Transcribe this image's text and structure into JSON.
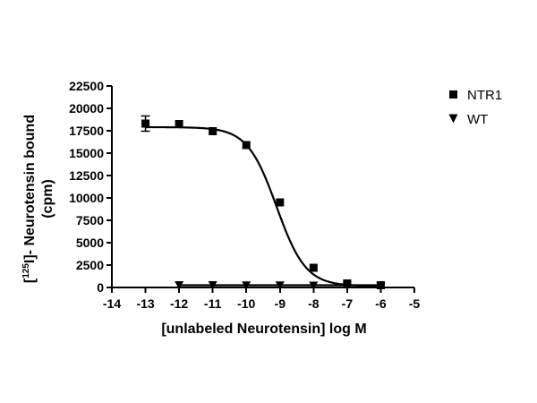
{
  "chart_data": {
    "type": "scatter",
    "title": "",
    "xlabel": "[unlabeled Neurotensin] log M",
    "ylabel_prefix": "[",
    "ylabel_superscript": "125",
    "ylabel_suffix": "I]- Neurotensin bound",
    "ylabel_line2": "(cpm)",
    "xlim": [
      -14,
      -5
    ],
    "ylim": [
      0,
      22500
    ],
    "x_ticks": [
      -14,
      -13,
      -12,
      -11,
      -10,
      -9,
      -8,
      -7,
      -6,
      -5
    ],
    "x_tick_labels": [
      "-14",
      "-13",
      "-12",
      "-11",
      "-10",
      "-9",
      "-8",
      "-7",
      "-6",
      "-5"
    ],
    "y_ticks": [
      0,
      2500,
      5000,
      7500,
      10000,
      12500,
      15000,
      17500,
      20000,
      22500
    ],
    "y_tick_labels": [
      "0",
      "2500",
      "5000",
      "7500",
      "10000",
      "12500",
      "15000",
      "17500",
      "20000",
      "22500"
    ],
    "grid": false,
    "legend": "right",
    "series": [
      {
        "name": "NTR1",
        "marker": "square",
        "x": [
          -13,
          -12,
          -11,
          -10,
          -9,
          -8,
          -7,
          -6
        ],
        "y": [
          18300,
          18250,
          17450,
          15900,
          9500,
          2200,
          450,
          250
        ],
        "error": [
          850,
          0,
          0,
          0,
          0,
          0,
          0,
          0
        ],
        "fit": {
          "model": "one-site competition",
          "top": 17900,
          "bottom": 150,
          "log_ic50": -9.1,
          "hill_slope": -1.0
        }
      },
      {
        "name": "WT",
        "marker": "triangle-down",
        "x": [
          -12,
          -11,
          -10,
          -9,
          -8,
          -7,
          -6
        ],
        "y": [
          300,
          300,
          280,
          270,
          250,
          230,
          200
        ],
        "fit": {
          "model": "flat",
          "y": 250
        }
      }
    ]
  }
}
